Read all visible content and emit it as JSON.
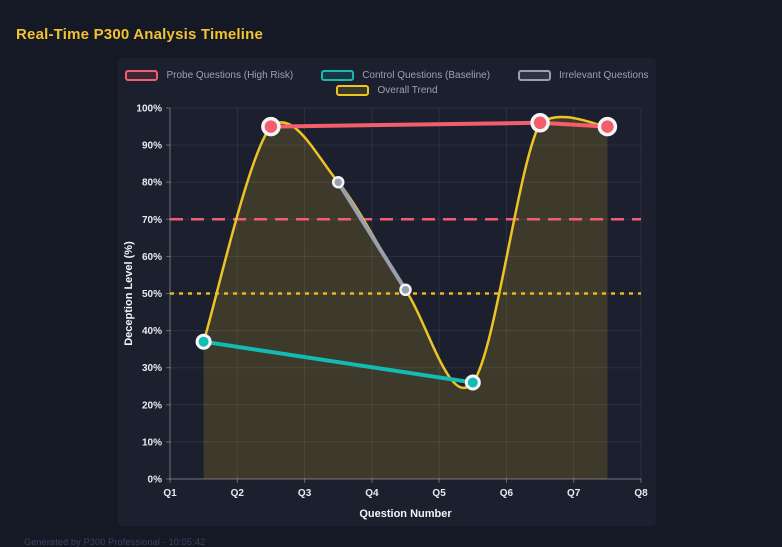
{
  "page": {
    "title": "Real-Time P300 Analysis Timeline",
    "footer": "Generated by P300 Professional - 10:05:42"
  },
  "colors": {
    "page_bg": "#151825",
    "panel_bg": "#1c1f2e",
    "title": "#f2c230",
    "probe": "#f25f6b",
    "control": "#12bcb2",
    "irrelevant": "#98a0af",
    "trend": "#eec425",
    "trend_fill": "rgba(238,196,37,0.16)",
    "threshold_high": "#f25d74",
    "threshold_mid": "#e5b91c",
    "grid": "rgba(255,255,255,0.08)",
    "axis": "rgba(255,255,255,0.32)",
    "tick_text": "#e8eaf0",
    "legend_text": "#9aa2b6",
    "marker_ring": "#f3f5f9",
    "footer_text": "#3c4361"
  },
  "chart_data": {
    "type": "line",
    "title": "Real-Time P300 Analysis Timeline",
    "xlabel": "Question Number",
    "ylabel": "Deception Level (%)",
    "x_ticks": [
      "Q1",
      "Q2",
      "Q3",
      "Q4",
      "Q5",
      "Q6",
      "Q7",
      "Q8"
    ],
    "x_tick_values": [
      1,
      2,
      3,
      4,
      5,
      6,
      7,
      8
    ],
    "x_range": [
      1,
      8
    ],
    "ylim": [
      0,
      100
    ],
    "y_ticks": [
      "0%",
      "10%",
      "20%",
      "30%",
      "40%",
      "50%",
      "60%",
      "70%",
      "80%",
      "90%",
      "100%"
    ],
    "y_tick_values": [
      0,
      10,
      20,
      30,
      40,
      50,
      60,
      70,
      80,
      90,
      100
    ],
    "grid": true,
    "legend_position": "top-center",
    "series": [
      {
        "name": "Probe Questions (High Risk)",
        "key": "probe",
        "x": [
          2.5,
          6.5,
          7.5
        ],
        "values": [
          95,
          96,
          95
        ],
        "line_width": 4,
        "marker_r": 8,
        "marker_stroke": 3.5
      },
      {
        "name": "Control Questions (Baseline)",
        "key": "control",
        "x": [
          1.5,
          5.5
        ],
        "values": [
          37,
          26
        ],
        "line_width": 4,
        "marker_r": 6.5,
        "marker_stroke": 3
      },
      {
        "name": "Irrelevant Questions",
        "key": "irrelevant",
        "x": [
          3.5,
          4.5
        ],
        "values": [
          80,
          51
        ],
        "line_width": 4,
        "marker_r": 5,
        "marker_stroke": 2.5
      },
      {
        "name": "Overall Trend",
        "key": "trend",
        "x": [
          1.5,
          2.5,
          3.5,
          4.5,
          5.5,
          6.5,
          7.5
        ],
        "values": [
          37,
          95,
          80,
          51,
          26,
          96,
          95
        ],
        "smooth": true,
        "fill_to_zero": true,
        "line_width": 2.5,
        "marker_r": 0
      }
    ],
    "thresholds": [
      {
        "name": "high-risk-threshold",
        "value": 70,
        "key": "threshold_high",
        "dash": [
          13,
          8
        ],
        "width": 2.5
      },
      {
        "name": "baseline-threshold",
        "value": 50,
        "key": "threshold_mid",
        "dash": [
          4,
          5
        ],
        "width": 2.5
      }
    ]
  }
}
